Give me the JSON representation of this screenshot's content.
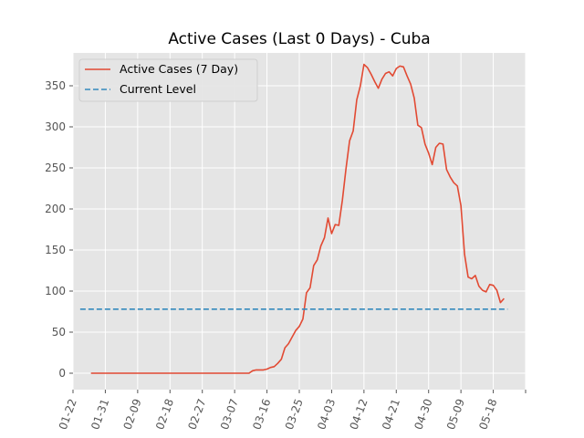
{
  "chart_data": {
    "type": "line",
    "title": "Active Cases (Last 0 Days) - Cuba",
    "xlabel": "",
    "ylabel": "",
    "x_ticks": [
      "01-22",
      "01-31",
      "02-09",
      "02-18",
      "02-27",
      "03-07",
      "03-16",
      "03-25",
      "04-03",
      "04-12",
      "04-21",
      "04-30",
      "05-09",
      "05-18"
    ],
    "y_ticks": [
      0,
      50,
      100,
      150,
      200,
      250,
      300,
      350
    ],
    "ylim": [
      -20,
      390
    ],
    "grid": true,
    "legend_position": "top-left",
    "series": [
      {
        "name": "Active Cases (7 Day)",
        "color": "#e24a33",
        "style": "solid",
        "x": [
          "2020-01-27",
          "2020-03-11",
          "2020-03-12",
          "2020-03-13",
          "2020-03-14",
          "2020-03-15",
          "2020-03-16",
          "2020-03-17",
          "2020-03-18",
          "2020-03-19",
          "2020-03-20",
          "2020-03-21",
          "2020-03-22",
          "2020-03-23",
          "2020-03-24",
          "2020-03-25",
          "2020-03-26",
          "2020-03-27",
          "2020-03-28",
          "2020-03-29",
          "2020-03-30",
          "2020-03-31",
          "2020-04-01",
          "2020-04-02",
          "2020-04-03",
          "2020-04-04",
          "2020-04-05",
          "2020-04-06",
          "2020-04-07",
          "2020-04-08",
          "2020-04-09",
          "2020-04-10",
          "2020-04-11",
          "2020-04-12",
          "2020-04-13",
          "2020-04-14",
          "2020-04-15",
          "2020-04-16",
          "2020-04-17",
          "2020-04-18",
          "2020-04-19",
          "2020-04-20",
          "2020-04-21",
          "2020-04-22",
          "2020-04-23",
          "2020-04-24",
          "2020-04-25",
          "2020-04-26",
          "2020-04-27",
          "2020-04-28",
          "2020-04-29",
          "2020-04-30",
          "2020-05-01",
          "2020-05-02",
          "2020-05-03",
          "2020-05-04",
          "2020-05-05",
          "2020-05-06",
          "2020-05-07",
          "2020-05-08",
          "2020-05-09",
          "2020-05-10",
          "2020-05-11",
          "2020-05-12",
          "2020-05-13",
          "2020-05-14",
          "2020-05-15",
          "2020-05-16",
          "2020-05-17",
          "2020-05-18",
          "2020-05-19",
          "2020-05-20",
          "2020-05-21"
        ],
        "values": [
          0,
          0,
          3,
          4,
          4,
          4,
          5,
          7,
          8,
          12,
          17,
          31,
          36,
          44,
          52,
          57,
          66,
          98,
          104,
          131,
          138,
          155,
          165,
          189,
          170,
          181,
          180,
          211,
          249,
          283,
          295,
          333,
          350,
          376,
          372,
          364,
          355,
          347,
          358,
          365,
          367,
          362,
          371,
          374,
          373,
          362,
          352,
          335,
          302,
          299,
          279,
          268,
          254,
          275,
          280,
          279,
          248,
          239,
          232,
          228,
          204,
          145,
          117,
          115,
          119,
          106,
          101,
          99,
          108,
          107,
          101,
          86,
          91
        ]
      },
      {
        "name": "Current Level",
        "color": "#348abd",
        "style": "dashed",
        "x": [
          "2020-01-24",
          "2020-05-22"
        ],
        "values": [
          78,
          78
        ]
      }
    ]
  }
}
